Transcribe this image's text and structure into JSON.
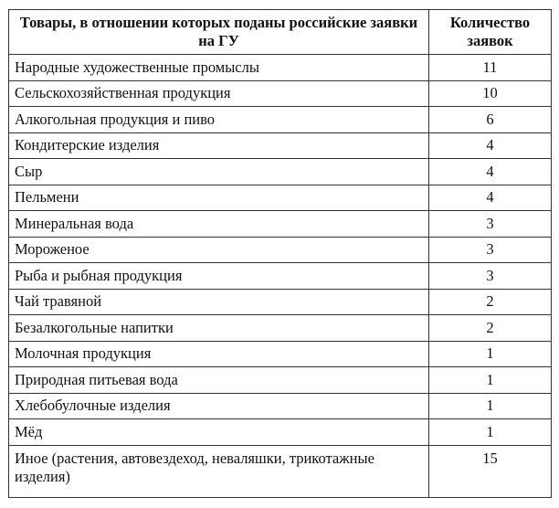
{
  "table": {
    "headers": [
      "Товары, в отношении которых поданы российские заявки на ГУ",
      "Количество заявок"
    ],
    "rows": [
      {
        "item": "Народные художественные промыслы",
        "count": "11"
      },
      {
        "item": "Сельскохозяйственная продукция",
        "count": "10"
      },
      {
        "item": "Алкогольная продукция и пиво",
        "count": "6"
      },
      {
        "item": "Кондитерские изделия",
        "count": "4"
      },
      {
        "item": "Сыр",
        "count": "4"
      },
      {
        "item": "Пельмени",
        "count": "4"
      },
      {
        "item": "Минеральная вода",
        "count": "3"
      },
      {
        "item": "Мороженое",
        "count": "3"
      },
      {
        "item": "Рыба и рыбная продукция",
        "count": "3"
      },
      {
        "item": "Чай травяной",
        "count": "2"
      },
      {
        "item": "Безалкогольные напитки",
        "count": "2"
      },
      {
        "item": "Молочная продукция",
        "count": "1"
      },
      {
        "item": "Природная питьевая вода",
        "count": "1"
      },
      {
        "item": "Хлебобулочные изделия",
        "count": "1"
      },
      {
        "item": "Мёд",
        "count": "1"
      },
      {
        "item": "Иное (растения, автовездеход, неваляшки, трикотажные изделия)",
        "count": "15"
      }
    ]
  }
}
